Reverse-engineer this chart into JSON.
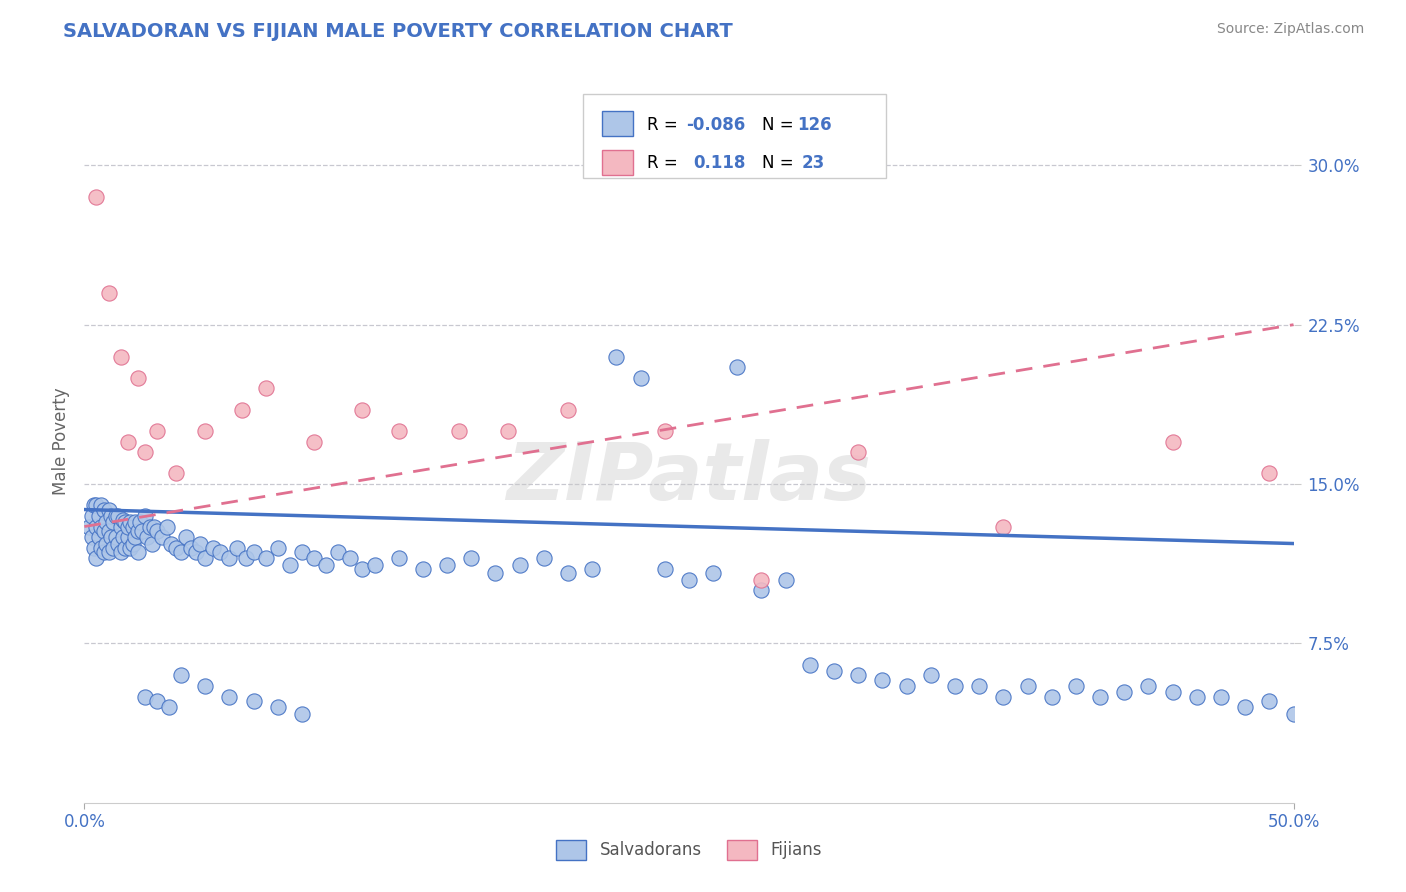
{
  "title": "SALVADORAN VS FIJIAN MALE POVERTY CORRELATION CHART",
  "source": "Source: ZipAtlas.com",
  "ylabel": "Male Poverty",
  "xlim": [
    0.0,
    0.5
  ],
  "ylim": [
    0.0,
    0.34
  ],
  "ytick_labels": [
    "7.5%",
    "15.0%",
    "22.5%",
    "30.0%"
  ],
  "ytick_vals": [
    0.075,
    0.15,
    0.225,
    0.3
  ],
  "legend_r_salv": "-0.086",
  "legend_n_salv": "126",
  "legend_r_fij": "0.118",
  "legend_n_fij": "23",
  "salv_color": "#aec6e8",
  "fij_color": "#f4b8c1",
  "salv_line_color": "#4472c4",
  "fij_line_color": "#e07090",
  "title_color": "#4472c4",
  "axis_label_color": "#4472c4",
  "background_color": "#ffffff",
  "grid_color": "#c8c8d0",
  "watermark": "ZIPatlas",
  "salv_trend_x0": 0.0,
  "salv_trend_y0": 0.138,
  "salv_trend_x1": 0.5,
  "salv_trend_y1": 0.122,
  "fij_trend_x0": 0.0,
  "fij_trend_y0": 0.13,
  "fij_trend_x1": 0.5,
  "fij_trend_y1": 0.225,
  "salv_x": [
    0.002,
    0.003,
    0.003,
    0.004,
    0.004,
    0.005,
    0.005,
    0.005,
    0.006,
    0.006,
    0.007,
    0.007,
    0.007,
    0.008,
    0.008,
    0.008,
    0.009,
    0.009,
    0.01,
    0.01,
    0.01,
    0.011,
    0.011,
    0.012,
    0.012,
    0.013,
    0.013,
    0.014,
    0.014,
    0.015,
    0.015,
    0.016,
    0.016,
    0.017,
    0.017,
    0.018,
    0.018,
    0.019,
    0.019,
    0.02,
    0.02,
    0.021,
    0.021,
    0.022,
    0.022,
    0.023,
    0.024,
    0.025,
    0.026,
    0.027,
    0.028,
    0.029,
    0.03,
    0.032,
    0.034,
    0.036,
    0.038,
    0.04,
    0.042,
    0.044,
    0.046,
    0.048,
    0.05,
    0.053,
    0.056,
    0.06,
    0.063,
    0.067,
    0.07,
    0.075,
    0.08,
    0.085,
    0.09,
    0.095,
    0.1,
    0.105,
    0.11,
    0.115,
    0.12,
    0.13,
    0.14,
    0.15,
    0.16,
    0.17,
    0.18,
    0.19,
    0.2,
    0.21,
    0.22,
    0.23,
    0.24,
    0.25,
    0.26,
    0.27,
    0.28,
    0.29,
    0.3,
    0.31,
    0.32,
    0.33,
    0.34,
    0.35,
    0.36,
    0.37,
    0.38,
    0.39,
    0.4,
    0.41,
    0.42,
    0.43,
    0.44,
    0.45,
    0.46,
    0.47,
    0.48,
    0.49,
    0.5,
    0.025,
    0.03,
    0.035,
    0.04,
    0.05,
    0.06,
    0.07,
    0.08,
    0.09
  ],
  "salv_y": [
    0.13,
    0.125,
    0.135,
    0.12,
    0.14,
    0.115,
    0.13,
    0.14,
    0.125,
    0.135,
    0.12,
    0.13,
    0.14,
    0.118,
    0.128,
    0.138,
    0.122,
    0.132,
    0.118,
    0.128,
    0.138,
    0.125,
    0.135,
    0.12,
    0.132,
    0.125,
    0.135,
    0.122,
    0.135,
    0.118,
    0.13,
    0.125,
    0.133,
    0.12,
    0.132,
    0.125,
    0.13,
    0.12,
    0.132,
    0.122,
    0.13,
    0.125,
    0.132,
    0.118,
    0.128,
    0.132,
    0.128,
    0.135,
    0.125,
    0.13,
    0.122,
    0.13,
    0.128,
    0.125,
    0.13,
    0.122,
    0.12,
    0.118,
    0.125,
    0.12,
    0.118,
    0.122,
    0.115,
    0.12,
    0.118,
    0.115,
    0.12,
    0.115,
    0.118,
    0.115,
    0.12,
    0.112,
    0.118,
    0.115,
    0.112,
    0.118,
    0.115,
    0.11,
    0.112,
    0.115,
    0.11,
    0.112,
    0.115,
    0.108,
    0.112,
    0.115,
    0.108,
    0.11,
    0.21,
    0.2,
    0.11,
    0.105,
    0.108,
    0.205,
    0.1,
    0.105,
    0.065,
    0.062,
    0.06,
    0.058,
    0.055,
    0.06,
    0.055,
    0.055,
    0.05,
    0.055,
    0.05,
    0.055,
    0.05,
    0.052,
    0.055,
    0.052,
    0.05,
    0.05,
    0.045,
    0.048,
    0.042,
    0.05,
    0.048,
    0.045,
    0.06,
    0.055,
    0.05,
    0.048,
    0.045,
    0.042
  ],
  "fij_x": [
    0.005,
    0.01,
    0.015,
    0.018,
    0.022,
    0.025,
    0.03,
    0.038,
    0.05,
    0.065,
    0.075,
    0.095,
    0.115,
    0.13,
    0.155,
    0.175,
    0.2,
    0.24,
    0.28,
    0.32,
    0.38,
    0.45,
    0.49
  ],
  "fij_y": [
    0.285,
    0.24,
    0.21,
    0.17,
    0.2,
    0.165,
    0.175,
    0.155,
    0.175,
    0.185,
    0.195,
    0.17,
    0.185,
    0.175,
    0.175,
    0.175,
    0.185,
    0.175,
    0.105,
    0.165,
    0.13,
    0.17,
    0.155
  ]
}
